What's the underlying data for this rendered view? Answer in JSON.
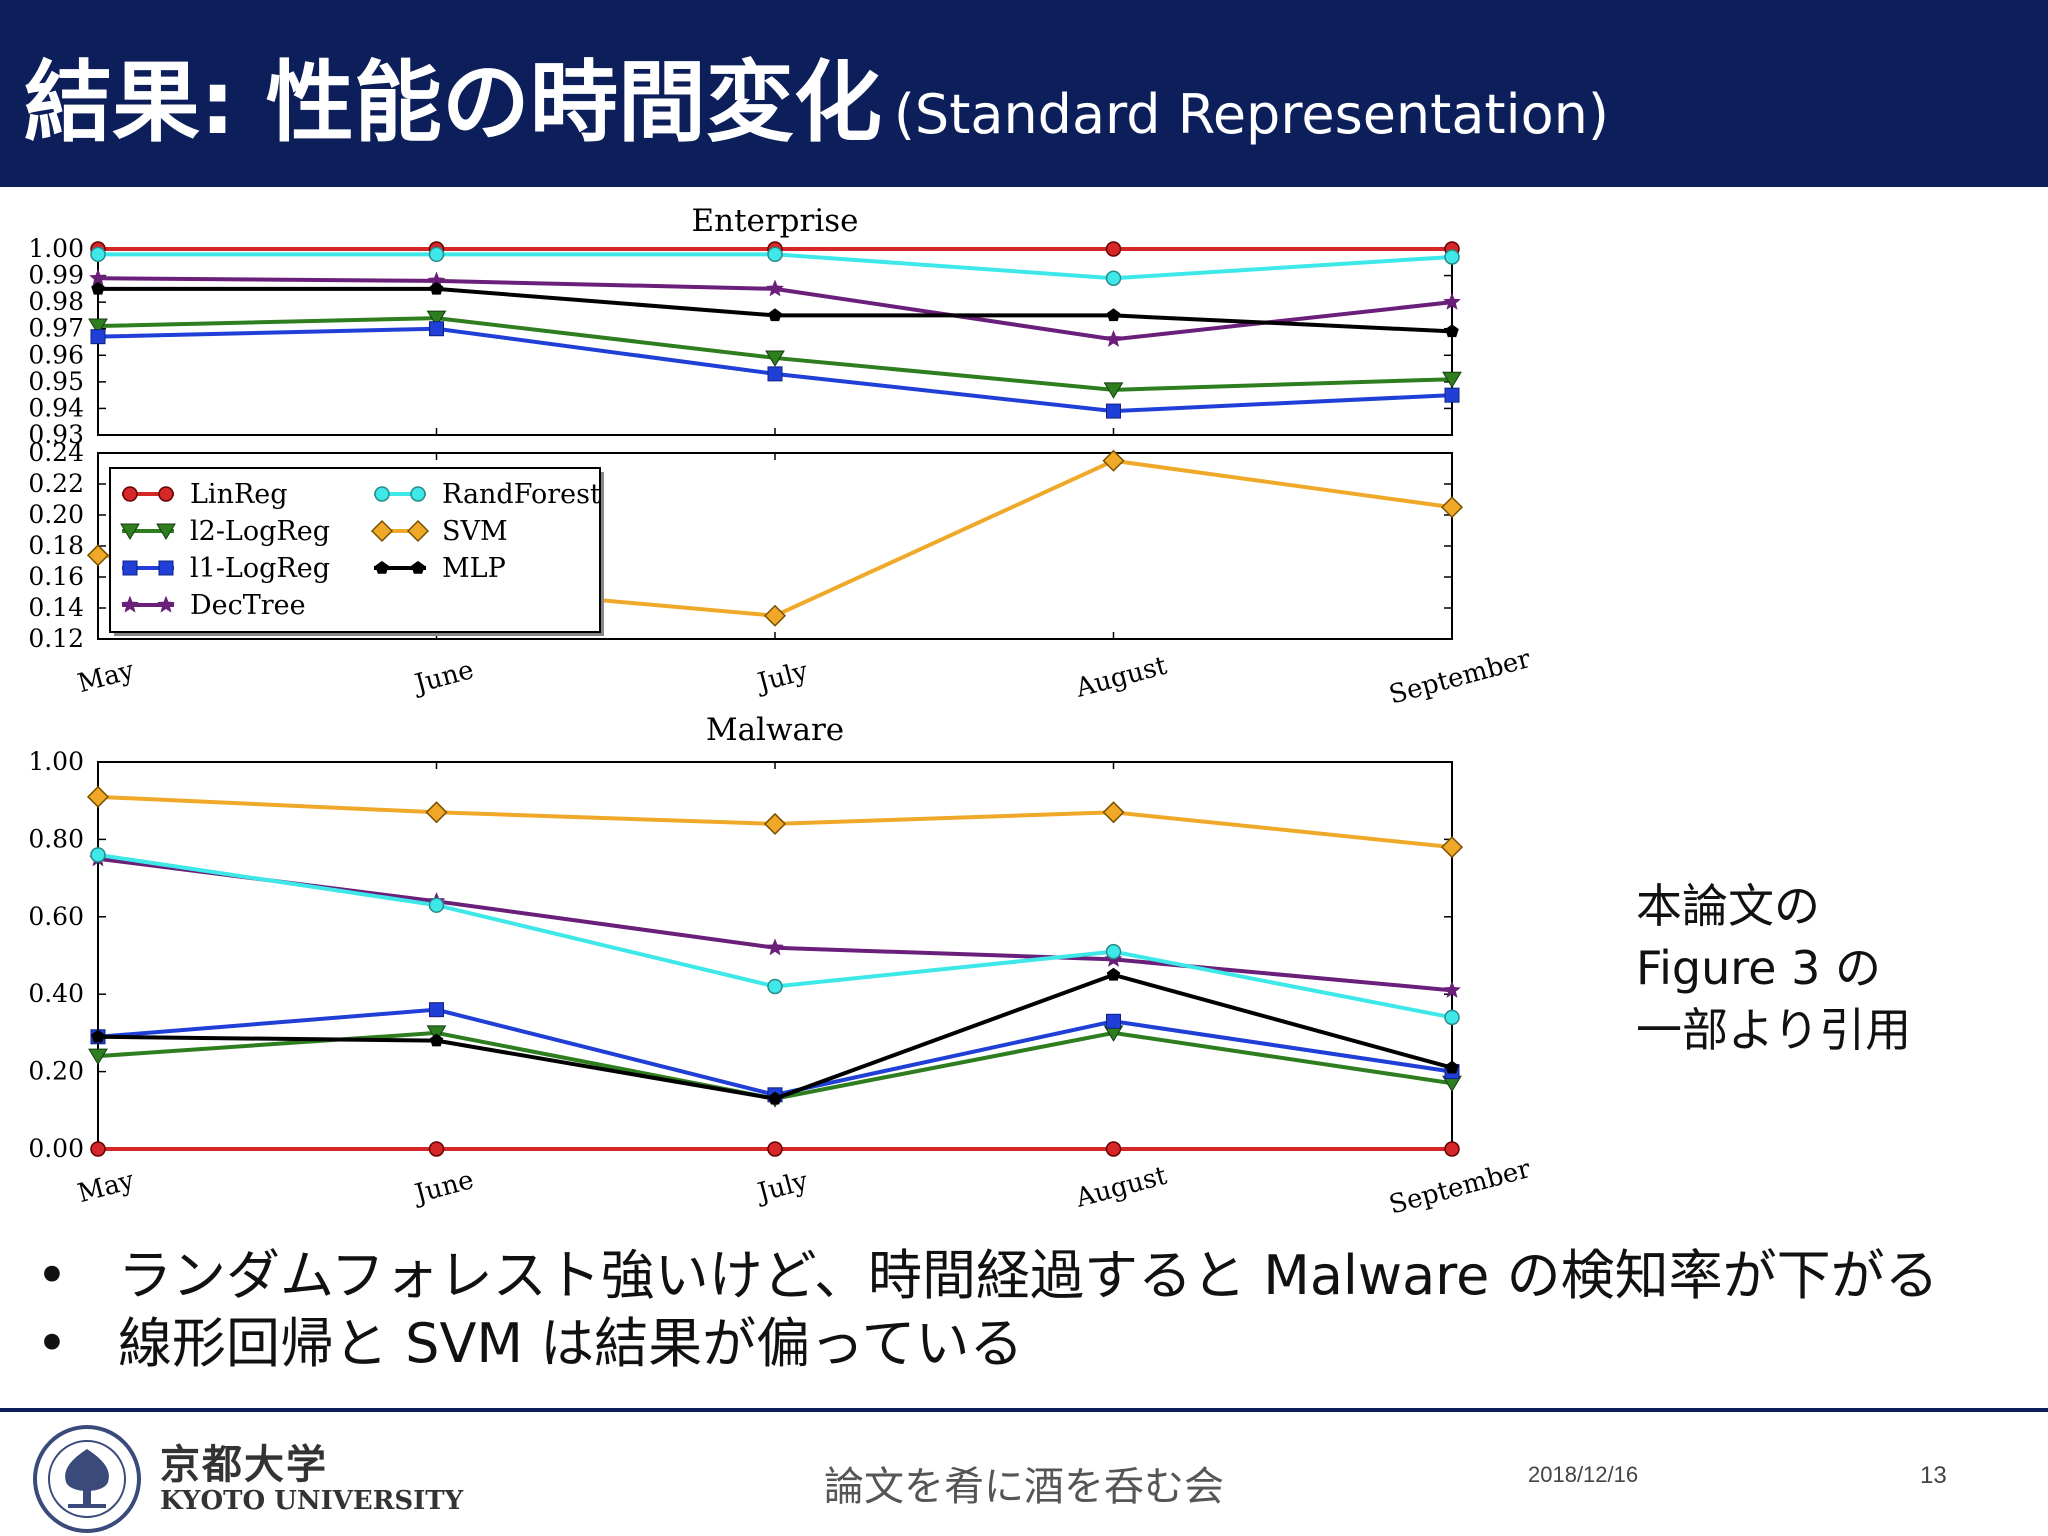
{
  "slide": {
    "title_main": "結果: 性能の時間変化",
    "title_sub": "(Standard Representation)",
    "note_lines": [
      "本論文の",
      "Figure 3 の",
      "一部より引用"
    ],
    "bullets": [
      "ランダムフォレスト強いけど、時間経過すると Malware の検知率が下がる",
      "線形回帰と SVM は結果が偏っている"
    ],
    "bullet_symbol": "•",
    "footer": {
      "university_jp": "京都大学",
      "university_en": "KYOTO UNIVERSITY",
      "event": "論文を肴に酒を呑む会",
      "date": "2018/12/16",
      "page": "13"
    },
    "colors": {
      "header": "#0d1f5a"
    }
  },
  "chart_data": [
    {
      "type": "line",
      "title": "Enterprise",
      "xlabel": "",
      "ylabel": "",
      "categories": [
        "May",
        "June",
        "July",
        "August",
        "September"
      ],
      "broken_axis": true,
      "upper_ylim": [
        0.93,
        1.0
      ],
      "upper_yticks": [
        "1.00",
        "0.99",
        "0.98",
        "0.97",
        "0.96",
        "0.95",
        "0.94",
        "0.93"
      ],
      "lower_ylim": [
        0.12,
        0.24
      ],
      "lower_yticks": [
        "0.24",
        "0.22",
        "0.20",
        "0.18",
        "0.16",
        "0.14",
        "0.12"
      ],
      "legend_position": "upper-left of lower panel",
      "series": [
        {
          "name": "LinReg",
          "color": "#d62728",
          "marker": "circle",
          "values": [
            1.0,
            1.0,
            1.0,
            1.0,
            1.0
          ]
        },
        {
          "name": "l2-LogReg",
          "color": "#2e7d1f",
          "marker": "triangle-down",
          "values": [
            0.971,
            0.974,
            0.959,
            0.947,
            0.951
          ]
        },
        {
          "name": "l1-LogReg",
          "color": "#1f3fd6",
          "marker": "square",
          "values": [
            0.967,
            0.97,
            0.953,
            0.939,
            0.945
          ]
        },
        {
          "name": "DecTree",
          "color": "#6a1f7a",
          "marker": "star",
          "values": [
            0.989,
            0.988,
            0.985,
            0.966,
            0.98
          ]
        },
        {
          "name": "RandForest",
          "color": "#3ee8e8",
          "marker": "circle-open",
          "values": [
            0.998,
            0.998,
            0.998,
            0.989,
            0.997
          ]
        },
        {
          "name": "SVM",
          "color": "#f0a828",
          "marker": "diamond",
          "values": [
            0.174,
            null,
            0.135,
            0.235,
            0.205
          ]
        },
        {
          "name": "MLP",
          "color": "#000000",
          "marker": "pentagon",
          "values": [
            0.985,
            0.985,
            0.975,
            0.975,
            0.969
          ]
        }
      ]
    },
    {
      "type": "line",
      "title": "Malware",
      "xlabel": "",
      "ylabel": "",
      "categories": [
        "May",
        "June",
        "July",
        "August",
        "September"
      ],
      "ylim": [
        0.0,
        1.0
      ],
      "yticks": [
        "1.00",
        "0.80",
        "0.60",
        "0.40",
        "0.20",
        "0.00"
      ],
      "series": [
        {
          "name": "LinReg",
          "color": "#d62728",
          "marker": "circle",
          "values": [
            0.0,
            0.0,
            0.0,
            0.0,
            0.0
          ]
        },
        {
          "name": "l2-LogReg",
          "color": "#2e7d1f",
          "marker": "triangle-down",
          "values": [
            0.24,
            0.3,
            0.13,
            0.3,
            0.17
          ]
        },
        {
          "name": "l1-LogReg",
          "color": "#1f3fd6",
          "marker": "square",
          "values": [
            0.29,
            0.36,
            0.14,
            0.33,
            0.2
          ]
        },
        {
          "name": "DecTree",
          "color": "#6a1f7a",
          "marker": "star",
          "values": [
            0.75,
            0.64,
            0.52,
            0.49,
            0.41
          ]
        },
        {
          "name": "RandForest",
          "color": "#3ee8e8",
          "marker": "circle-open",
          "values": [
            0.76,
            0.63,
            0.42,
            0.51,
            0.34
          ]
        },
        {
          "name": "SVM",
          "color": "#f0a828",
          "marker": "diamond",
          "values": [
            0.91,
            0.87,
            0.84,
            0.87,
            0.78
          ]
        },
        {
          "name": "MLP",
          "color": "#000000",
          "marker": "pentagon",
          "values": [
            0.29,
            0.28,
            0.13,
            0.45,
            0.21
          ]
        }
      ]
    }
  ]
}
